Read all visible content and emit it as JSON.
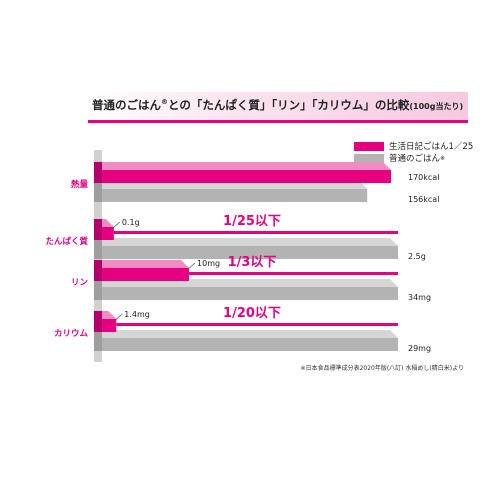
{
  "chart_data": {
    "type": "bar",
    "title": "普通のごはん",
    "title_mark": "®",
    "title_rest": "との「たんぱく質」「リン」「カリウム」の比較",
    "title_unit": "(100g当たり)",
    "categories": [
      "熱量",
      "たんぱく質",
      "リン",
      "カリウム"
    ],
    "series": [
      {
        "name": "生活日記ごはん1／25",
        "values": [
          170,
          0.1,
          10,
          1.4
        ],
        "labels": [
          "170kcal",
          "0.1g",
          "10mg",
          "1.4mg"
        ]
      },
      {
        "name": "普通のごはん",
        "name_mark": "※",
        "values": [
          156,
          2.5,
          34,
          29
        ],
        "labels": [
          "156kcal",
          "2.5g",
          "34mg",
          "29mg"
        ]
      }
    ],
    "ratios": [
      "",
      "1/25以下",
      "1/3以下",
      "1/20以下"
    ],
    "footnote": "※日本食品標準成分表2020年版(八訂) 水稲めし(精白米)より",
    "colors": {
      "primary": "#e4007f",
      "secondary": "#b3b3b3",
      "label": "#e4007f"
    },
    "grid": false,
    "legend_position": "top-right"
  }
}
